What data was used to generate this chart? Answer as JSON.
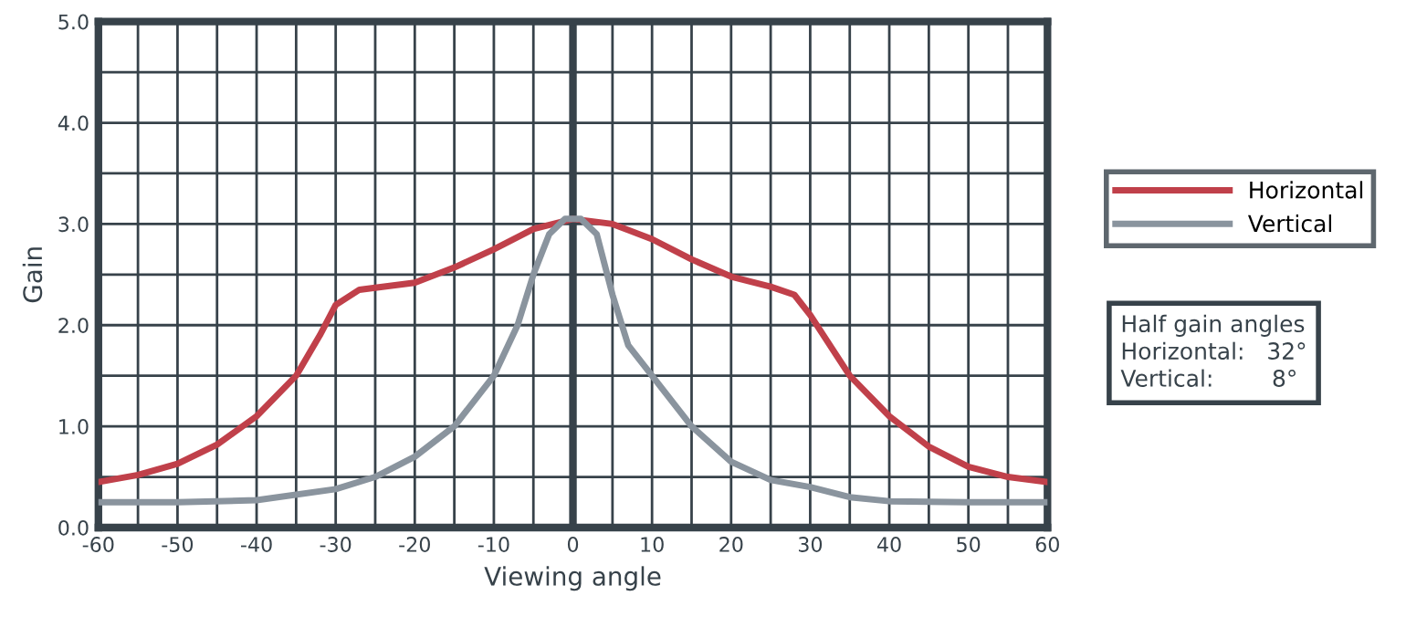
{
  "chart_data": {
    "type": "line",
    "xlabel": "Viewing angle",
    "ylabel": "Gain",
    "xlim": [
      -60,
      60
    ],
    "ylim": [
      0,
      5
    ],
    "xticks": [
      -60,
      {
        "value": -55,
        "label": null
      },
      -50,
      {
        "value": -45,
        "label": null
      },
      -40,
      {
        "value": -35,
        "label": null
      },
      -30,
      {
        "value": -25,
        "label": null
      },
      -20,
      {
        "value": -15,
        "label": null
      },
      -10,
      {
        "value": -5,
        "label": null
      },
      0,
      {
        "value": 5,
        "label": null
      },
      10,
      {
        "value": 15,
        "label": null
      },
      20,
      {
        "value": 25,
        "label": null
      },
      30,
      {
        "value": 35,
        "label": null
      },
      40,
      {
        "value": 45,
        "label": null
      },
      50,
      {
        "value": 55,
        "label": null
      },
      60
    ],
    "yticks": [
      {
        "value": 0,
        "label": "0.0"
      },
      {
        "value": 0.5,
        "label": null
      },
      {
        "value": 1,
        "label": "1.0"
      },
      {
        "value": 1.5,
        "label": null
      },
      {
        "value": 2,
        "label": "2.0"
      },
      {
        "value": 2.5,
        "label": null
      },
      {
        "value": 3,
        "label": "3.0"
      },
      {
        "value": 3.5,
        "label": null
      },
      {
        "value": 4,
        "label": "4.0"
      },
      {
        "value": 4.5,
        "label": null
      },
      {
        "value": 5,
        "label": "5.0"
      }
    ],
    "grid": true,
    "legend": "right",
    "marker": "none",
    "line_style": "solid",
    "ref_lines": [
      {
        "axis": "x",
        "value": 0,
        "color": "#37424a"
      }
    ],
    "annotations": [
      "Half gain angles",
      "Horizontal:   32°",
      "Vertical:        8°"
    ],
    "series": [
      {
        "name": "Horizontal",
        "color": "#c0404a",
        "x": [
          -60,
          -55,
          -50,
          -45,
          -40,
          -35,
          -32,
          -30,
          -27,
          -25,
          -20,
          -15,
          -10,
          -5,
          0,
          5,
          10,
          15,
          20,
          25,
          28,
          30,
          35,
          40,
          45,
          50,
          55,
          60
        ],
        "values": [
          0.45,
          0.52,
          0.63,
          0.82,
          1.1,
          1.5,
          1.9,
          2.2,
          2.35,
          2.37,
          2.42,
          2.57,
          2.75,
          2.95,
          3.05,
          3.0,
          2.85,
          2.65,
          2.48,
          2.38,
          2.3,
          2.1,
          1.5,
          1.1,
          0.8,
          0.6,
          0.5,
          0.45
        ]
      },
      {
        "name": "Vertical",
        "color": "#8a949e",
        "x": [
          -60,
          -50,
          -40,
          -30,
          -25,
          -20,
          -15,
          -10,
          -7,
          -5,
          -3,
          -1,
          0,
          1,
          3,
          5,
          7,
          10,
          15,
          20,
          25,
          30,
          35,
          40,
          50,
          60
        ],
        "values": [
          0.25,
          0.25,
          0.27,
          0.38,
          0.5,
          0.7,
          1.0,
          1.5,
          2.0,
          2.5,
          2.9,
          3.05,
          3.05,
          3.05,
          2.9,
          2.3,
          1.8,
          1.5,
          1.0,
          0.65,
          0.47,
          0.4,
          0.3,
          0.26,
          0.25,
          0.25
        ]
      }
    ]
  }
}
